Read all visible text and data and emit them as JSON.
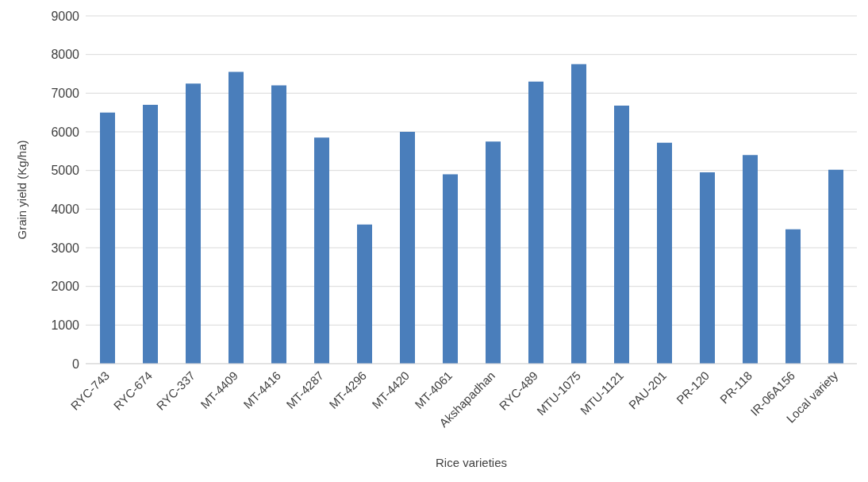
{
  "chart_data": {
    "type": "bar",
    "xlabel": "Rice varieties",
    "ylabel": "Grain yield (Kg/ha)",
    "categories": [
      "RYC-743",
      "RYC-674",
      "RYC-337",
      "MT-4409",
      "MT-4416",
      "MT-4287",
      "MT-4296",
      "MT-4420",
      "MT-4061",
      "Akshapadhan",
      "RYC-489",
      "MTU-1075",
      "MTU-1121",
      "PAU-201",
      "PR-120",
      "PR-118",
      "IR-06A156",
      "Local variety"
    ],
    "values": [
      6500,
      6700,
      7250,
      7550,
      7200,
      5850,
      3600,
      6000,
      4900,
      5750,
      7300,
      7750,
      6680,
      5720,
      4950,
      5400,
      3480,
      5020
    ],
    "color": "#4a7ebb",
    "ylim": [
      0,
      9000
    ],
    "yticks": [
      0,
      1000,
      2000,
      3000,
      4000,
      5000,
      6000,
      7000,
      8000,
      9000
    ],
    "grid": "y"
  }
}
